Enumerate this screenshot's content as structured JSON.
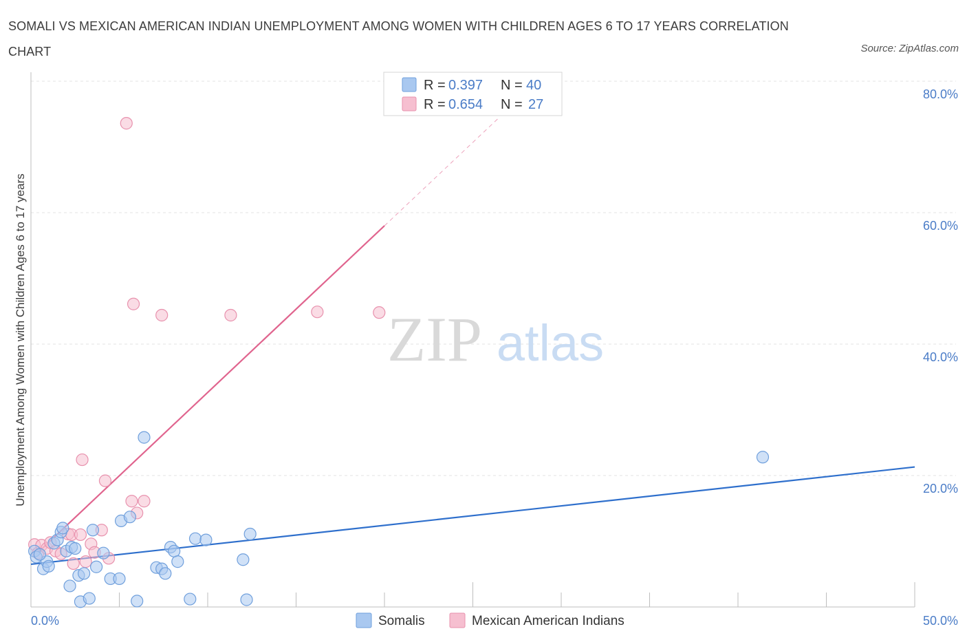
{
  "title": "SOMALI VS MEXICAN AMERICAN INDIAN UNEMPLOYMENT AMONG WOMEN WITH CHILDREN AGES 6 TO 17 YEARS CORRELATION CHART",
  "source": "Source: ZipAtlas.com",
  "watermark": {
    "zip": "ZIP",
    "atlas": "atlas"
  },
  "colors": {
    "somali_fill": "#a9c8f0",
    "somali_stroke": "#6f9fdc",
    "somali_line": "#2e6fcc",
    "mexican_fill": "#f6bfd0",
    "mexican_stroke": "#e891ad",
    "mexican_line": "#e0648e",
    "tick": "#4a7cc7",
    "grid": "#e3e3e3"
  },
  "legend_top": {
    "r_label": "R =",
    "n_label": "N =",
    "rows": [
      {
        "series": "Somalis",
        "r": "0.397",
        "n": "40"
      },
      {
        "series": "Mexican American Indians",
        "r": "0.654",
        "n": "27"
      }
    ]
  },
  "legend_bottom": [
    "Somalis",
    "Mexican American Indians"
  ],
  "chart_data": {
    "type": "scatter",
    "title": "SOMALI VS MEXICAN AMERICAN INDIAN UNEMPLOYMENT AMONG WOMEN WITH CHILDREN AGES 6 TO 17 YEARS CORRELATION CHART",
    "xlabel": "",
    "ylabel": "Unemployment Among Women with Children Ages 6 to 17 years",
    "xlim": [
      0,
      50
    ],
    "ylim": [
      0,
      80
    ],
    "x_tick_labels": [
      "0.0%",
      "50.0%"
    ],
    "y_ticks": [
      20,
      40,
      60,
      80
    ],
    "y_tick_labels": [
      "20.0%",
      "40.0%",
      "60.0%",
      "80.0%"
    ],
    "grid": true,
    "legend_placement": "top-center",
    "series": [
      {
        "name": "Somalis",
        "r": 0.397,
        "n": 40,
        "trend": {
          "x0": 0,
          "y0": 6.5,
          "x1": 50,
          "y1": 21.3
        },
        "points": [
          [
            0.2,
            8.5
          ],
          [
            0.3,
            7.6
          ],
          [
            0.7,
            5.8
          ],
          [
            0.9,
            6.9
          ],
          [
            1.0,
            6.2
          ],
          [
            1.3,
            9.7
          ],
          [
            1.5,
            10.2
          ],
          [
            1.7,
            11.4
          ],
          [
            1.8,
            12.0
          ],
          [
            2.0,
            8.5
          ],
          [
            2.3,
            9.1
          ],
          [
            2.5,
            8.9
          ],
          [
            2.2,
            3.2
          ],
          [
            2.7,
            4.8
          ],
          [
            3.0,
            5.1
          ],
          [
            2.8,
            0.8
          ],
          [
            3.3,
            1.3
          ],
          [
            3.5,
            11.7
          ],
          [
            3.7,
            6.1
          ],
          [
            4.1,
            8.2
          ],
          [
            4.5,
            4.3
          ],
          [
            5.0,
            4.3
          ],
          [
            5.1,
            13.1
          ],
          [
            5.6,
            13.7
          ],
          [
            6.0,
            0.9
          ],
          [
            6.4,
            25.8
          ],
          [
            7.1,
            6.0
          ],
          [
            7.4,
            5.8
          ],
          [
            7.6,
            5.1
          ],
          [
            7.9,
            9.1
          ],
          [
            8.1,
            8.5
          ],
          [
            8.3,
            6.9
          ],
          [
            9.0,
            1.2
          ],
          [
            9.3,
            10.4
          ],
          [
            9.9,
            10.2
          ],
          [
            12.0,
            7.2
          ],
          [
            12.2,
            1.1
          ],
          [
            12.4,
            11.1
          ],
          [
            41.4,
            22.8
          ],
          [
            0.5,
            8.0
          ]
        ]
      },
      {
        "name": "Mexican American Indians",
        "r": 0.654,
        "n": 27,
        "trend": {
          "x0": 0.4,
          "y0": 8.3,
          "x1": 20.0,
          "y1": 58.0,
          "dash_x1": 26.5,
          "dash_y1": 74.5
        },
        "points": [
          [
            0.2,
            9.5
          ],
          [
            0.4,
            8.2
          ],
          [
            0.6,
            9.4
          ],
          [
            0.9,
            8.9
          ],
          [
            1.1,
            9.8
          ],
          [
            1.4,
            8.5
          ],
          [
            1.7,
            8.1
          ],
          [
            2.1,
            11.1
          ],
          [
            2.3,
            11.0
          ],
          [
            2.4,
            6.6
          ],
          [
            2.8,
            11.0
          ],
          [
            3.1,
            6.9
          ],
          [
            3.4,
            9.6
          ],
          [
            3.6,
            8.3
          ],
          [
            4.0,
            11.7
          ],
          [
            4.4,
            7.4
          ],
          [
            2.9,
            22.4
          ],
          [
            4.2,
            19.2
          ],
          [
            5.7,
            16.1
          ],
          [
            6.0,
            14.3
          ],
          [
            6.4,
            16.1
          ],
          [
            5.4,
            73.6
          ],
          [
            5.8,
            46.1
          ],
          [
            7.4,
            44.4
          ],
          [
            11.3,
            44.4
          ],
          [
            16.2,
            44.9
          ],
          [
            19.7,
            44.8
          ]
        ]
      }
    ]
  }
}
